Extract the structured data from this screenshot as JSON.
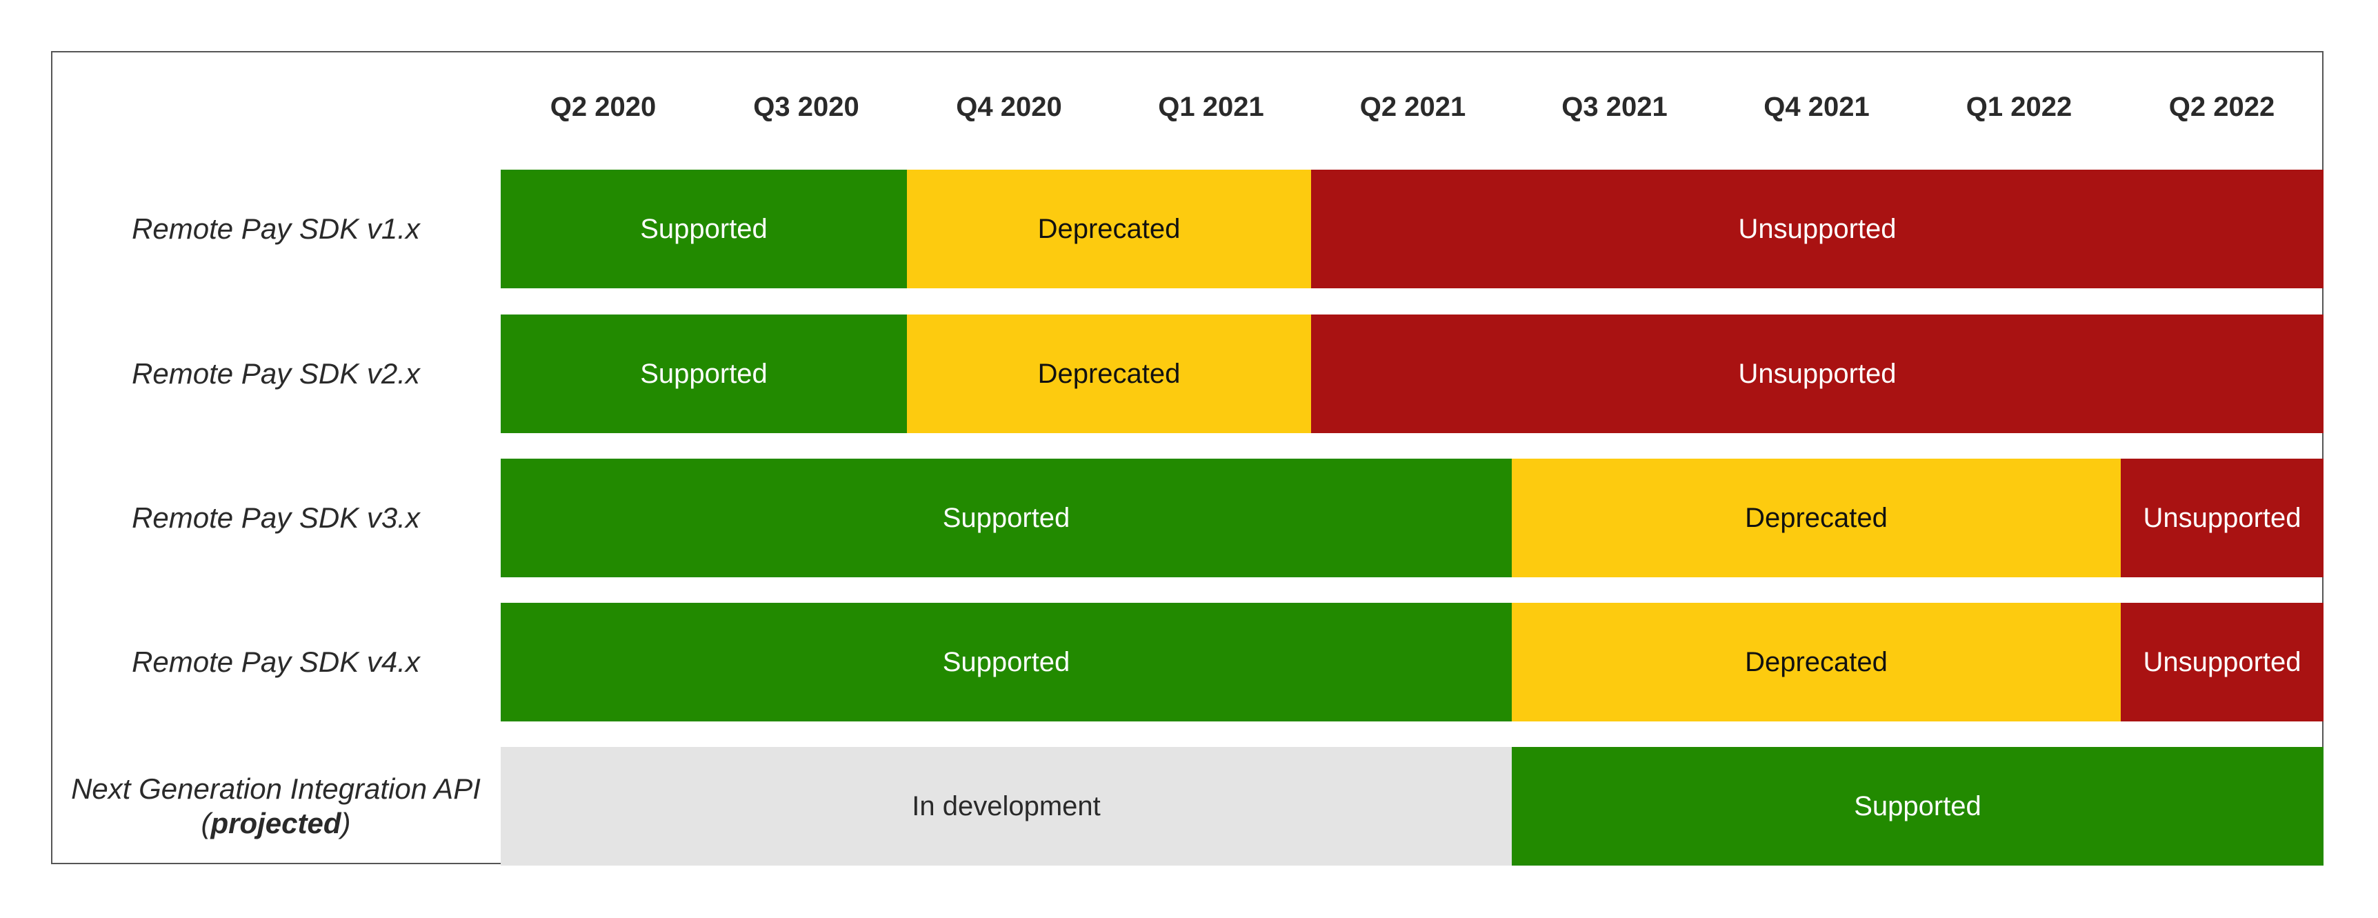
{
  "quarters": [
    "Q2 2020",
    "Q3 2020",
    "Q4 2020",
    "Q1 2021",
    "Q2 2021",
    "Q3 2021",
    "Q4 2021",
    "Q1 2022",
    "Q2 2022"
  ],
  "colors": {
    "supported": "#228a00",
    "deprecated": "#fdcb0f",
    "unsupported": "#a91212",
    "in_development": "#e4e4e4"
  },
  "rows": [
    {
      "label": "Remote Pay SDK v1.x",
      "segments": [
        {
          "status": "supported",
          "text": "Supported"
        },
        {
          "status": "deprecated",
          "text": "Deprecated"
        },
        {
          "status": "unsupported",
          "text": "Unsupported"
        }
      ]
    },
    {
      "label": "Remote Pay SDK v2.x",
      "segments": [
        {
          "status": "supported",
          "text": "Supported"
        },
        {
          "status": "deprecated",
          "text": "Deprecated"
        },
        {
          "status": "unsupported",
          "text": "Unsupported"
        }
      ]
    },
    {
      "label": "Remote Pay SDK v3.x",
      "segments": [
        {
          "status": "supported",
          "text": "Supported"
        },
        {
          "status": "deprecated",
          "text": "Deprecated"
        },
        {
          "status": "unsupported",
          "text": "Unsupported"
        }
      ]
    },
    {
      "label": "Remote Pay SDK v4.x",
      "segments": [
        {
          "status": "supported",
          "text": "Supported"
        },
        {
          "status": "deprecated",
          "text": "Deprecated"
        },
        {
          "status": "unsupported",
          "text": "Unsupported"
        }
      ]
    },
    {
      "label_line1": "Next Generation Integration API",
      "label_line2_open": "(",
      "label_line2_bold": "projected",
      "label_line2_close": ")",
      "segments": [
        {
          "status": "dev",
          "text": "In development"
        },
        {
          "status": "supported",
          "text": "Supported"
        }
      ]
    }
  ]
}
